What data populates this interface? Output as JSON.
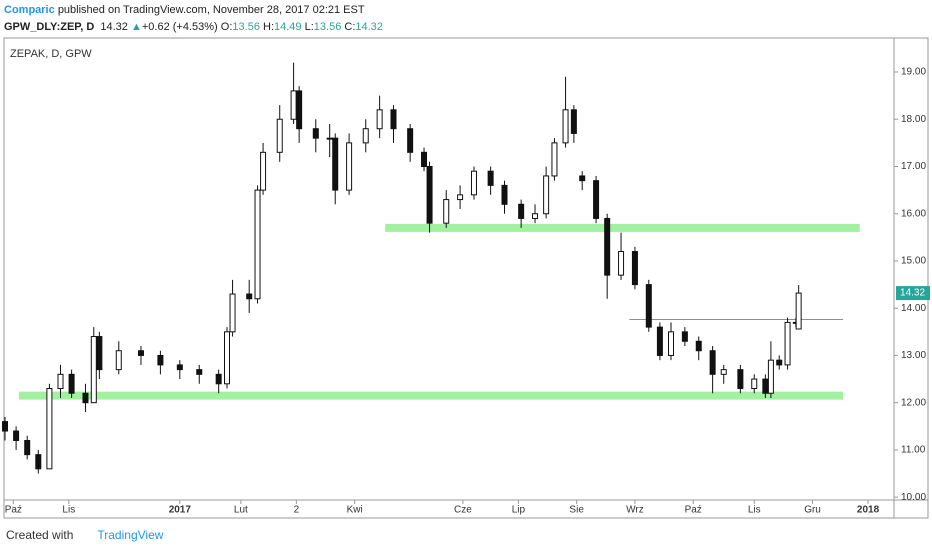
{
  "header": {
    "author": "Comparic",
    "published": "published on TradingView.com, November 28, 2017 02:21 EST",
    "symbol": "GPW_DLY:ZEP, D",
    "last": "14.32",
    "change": "+0.62 (+4.53%)",
    "o_label": "O:",
    "h_label": "H:",
    "l_label": "L:",
    "c_label": "C:"
  },
  "footer": {
    "created": "Created with",
    "brand": "TradingView"
  },
  "chart_data": {
    "type": "candlestick",
    "title": "ZEPAK, D, GPW",
    "x": [
      0,
      4,
      8,
      12,
      16,
      20,
      24,
      29,
      32,
      34,
      41,
      49,
      56,
      63,
      70,
      77,
      80,
      82,
      88,
      91,
      93,
      99,
      104,
      106,
      112,
      117,
      119,
      124,
      130,
      135,
      140,
      146,
      151,
      153,
      159,
      164,
      169,
      175,
      180,
      186,
      191,
      195,
      198,
      202,
      205,
      208,
      213,
      217,
      222,
      227,
      232,
      236,
      240,
      245,
      250,
      255,
      259,
      265,
      270,
      274,
      276,
      279,
      282,
      285,
      286
    ],
    "open": [
      11.6,
      11.4,
      11.2,
      10.9,
      10.6,
      12.3,
      12.6,
      12.2,
      12.0,
      13.4,
      12.7,
      13.1,
      13.0,
      12.8,
      12.7,
      12.6,
      12.4,
      13.5,
      14.3,
      14.2,
      16.5,
      17.3,
      18.0,
      18.6,
      17.8,
      17.6,
      17.6,
      16.5,
      17.5,
      17.8,
      18.2,
      17.8,
      17.3,
      17.0,
      15.8,
      16.3,
      16.4,
      16.9,
      16.6,
      16.2,
      15.9,
      16.0,
      16.8,
      17.5,
      18.2,
      16.8,
      16.7,
      15.9,
      14.7,
      15.2,
      14.5,
      13.6,
      13.0,
      13.5,
      13.3,
      13.1,
      12.6,
      12.7,
      12.3,
      12.5,
      12.2,
      12.9,
      12.8,
      13.7,
      13.56
    ],
    "high": [
      11.7,
      11.5,
      11.3,
      11.0,
      12.4,
      12.8,
      12.7,
      12.4,
      13.6,
      13.5,
      13.3,
      13.2,
      13.1,
      12.9,
      12.8,
      12.7,
      13.6,
      14.6,
      14.6,
      16.6,
      17.5,
      18.3,
      19.2,
      18.7,
      18.0,
      17.9,
      17.7,
      17.7,
      18.0,
      18.5,
      18.3,
      17.9,
      17.4,
      17.1,
      16.5,
      16.6,
      17.0,
      17.0,
      16.7,
      16.3,
      16.2,
      17.0,
      17.6,
      18.9,
      18.3,
      16.9,
      16.8,
      16.0,
      15.6,
      15.3,
      14.6,
      13.7,
      13.7,
      13.6,
      13.4,
      13.2,
      12.8,
      12.8,
      12.6,
      12.6,
      13.3,
      13.0,
      13.8,
      13.8,
      14.49
    ],
    "low": [
      11.2,
      11.0,
      10.8,
      10.5,
      10.6,
      12.1,
      12.1,
      11.8,
      12.0,
      12.5,
      12.6,
      12.8,
      12.6,
      12.5,
      12.4,
      12.2,
      12.3,
      13.4,
      13.9,
      14.1,
      16.4,
      17.1,
      17.9,
      17.5,
      17.3,
      17.2,
      16.2,
      16.4,
      17.3,
      17.6,
      17.5,
      17.1,
      16.9,
      15.6,
      15.7,
      16.1,
      16.3,
      16.4,
      16.0,
      15.7,
      15.8,
      15.9,
      16.7,
      17.4,
      17.5,
      16.5,
      15.8,
      14.2,
      14.6,
      14.4,
      13.5,
      12.9,
      12.9,
      13.2,
      12.9,
      12.2,
      12.4,
      12.2,
      12.2,
      12.1,
      12.1,
      12.7,
      12.7,
      13.6,
      13.56
    ],
    "close": [
      11.4,
      11.2,
      10.9,
      10.6,
      12.3,
      12.6,
      12.2,
      12.0,
      13.4,
      12.7,
      13.1,
      13.0,
      12.8,
      12.7,
      12.6,
      12.4,
      13.5,
      14.3,
      14.2,
      16.5,
      17.3,
      18.0,
      18.6,
      17.8,
      17.6,
      17.6,
      16.5,
      17.5,
      17.8,
      18.2,
      17.8,
      17.3,
      17.0,
      15.8,
      16.3,
      16.4,
      16.9,
      16.6,
      16.2,
      15.9,
      16.0,
      16.8,
      17.5,
      18.2,
      17.7,
      16.7,
      15.9,
      14.7,
      15.2,
      14.5,
      13.6,
      13.0,
      13.5,
      13.3,
      13.1,
      12.6,
      12.7,
      12.3,
      12.5,
      12.2,
      12.9,
      12.8,
      13.7,
      13.7,
      14.32
    ],
    "color": "#111111",
    "xlim": [
      0,
      320
    ],
    "xticks": [
      {
        "value": 3,
        "label": "Paź"
      },
      {
        "value": 23,
        "label": "Lis"
      },
      {
        "value": 63,
        "label": "2017"
      },
      {
        "value": 85,
        "label": "Lut"
      },
      {
        "value": 105,
        "label": "2"
      },
      {
        "value": 126,
        "label": "Kwi"
      },
      {
        "value": 165,
        "label": "Cze"
      },
      {
        "value": 185,
        "label": "Lip"
      },
      {
        "value": 206,
        "label": "Sie"
      },
      {
        "value": 227,
        "label": "Wrz"
      },
      {
        "value": 248,
        "label": "Paź"
      },
      {
        "value": 270,
        "label": "Lis"
      },
      {
        "value": 291,
        "label": "Gru"
      },
      {
        "value": 311,
        "label": "2018"
      }
    ],
    "ylim": [
      9.94,
      19.72
    ],
    "yticks": [
      {
        "value": 10,
        "label": "10.00"
      },
      {
        "value": 11,
        "label": "11.00"
      },
      {
        "value": 12,
        "label": "12.00"
      },
      {
        "value": 13,
        "label": "13.00"
      },
      {
        "value": 14,
        "label": "14.00"
      },
      {
        "value": 15,
        "label": "15.00"
      },
      {
        "value": 16,
        "label": "16.00"
      },
      {
        "value": 17,
        "label": "17.00"
      },
      {
        "value": 18,
        "label": "18.00"
      },
      {
        "value": 19,
        "label": "19.00"
      }
    ],
    "levels": [
      {
        "value": 12.15,
        "from": 5,
        "to": 302,
        "color": "#90ee90",
        "style": "band"
      },
      {
        "value": 15.7,
        "from": 137,
        "to": 308,
        "color": "#90ee90",
        "style": "band"
      },
      {
        "value": 13.76,
        "from": 225,
        "to": 302,
        "color": "#6f8fd8",
        "style": "line"
      }
    ],
    "last_color": "#26a69a"
  }
}
